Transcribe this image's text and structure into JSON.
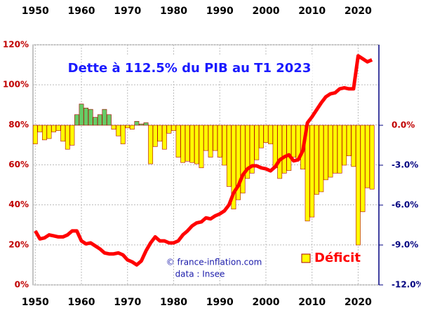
{
  "chart_data": {
    "type": "bar_line_dual",
    "title": "Dette à 112.5% du PIB au T1 2023",
    "annotations": [
      "© france-inflation.com",
      "data : Insee"
    ],
    "x": [
      1950,
      1951,
      1952,
      1953,
      1954,
      1955,
      1956,
      1957,
      1958,
      1959,
      1960,
      1961,
      1962,
      1963,
      1964,
      1965,
      1966,
      1967,
      1968,
      1969,
      1970,
      1971,
      1972,
      1973,
      1974,
      1975,
      1976,
      1977,
      1978,
      1979,
      1980,
      1981,
      1982,
      1983,
      1984,
      1985,
      1986,
      1987,
      1988,
      1989,
      1990,
      1991,
      1992,
      1993,
      1994,
      1995,
      1996,
      1997,
      1998,
      1999,
      2000,
      2001,
      2002,
      2003,
      2004,
      2005,
      2006,
      2007,
      2008,
      2009,
      2010,
      2011,
      2012,
      2013,
      2014,
      2015,
      2016,
      2017,
      2018,
      2019,
      2020,
      2021,
      2022,
      2023
    ],
    "series": [
      {
        "color": "#ff0000",
        "axis": "y",
        "values": [
          27,
          23,
          23.5,
          25,
          24.5,
          24,
          24,
          25,
          27,
          27,
          22,
          20.5,
          21,
          19.5,
          18,
          16,
          15.5,
          15.5,
          16,
          15,
          12.5,
          11.5,
          10,
          12,
          17,
          21,
          24,
          22,
          22,
          21,
          21,
          22,
          25,
          27,
          29.5,
          31,
          31.5,
          33.5,
          33,
          34.5,
          35.5,
          37,
          40,
          46,
          49.5,
          55,
          58,
          59.5,
          59.5,
          58.5,
          58,
          57,
          59,
          62.5,
          64,
          65,
          62,
          62.5,
          67,
          81,
          84,
          87.5,
          91,
          94,
          95.5,
          96,
          98,
          98.5,
          98,
          98,
          114.5,
          113,
          111.5,
          112.5
        ]
      },
      {
        "name": "Déficit",
        "color": "#ffff00",
        "positive_color": "#66cc66",
        "axis": "y2",
        "values": [
          -1.4,
          -0.5,
          -1.1,
          -1.0,
          -0.5,
          -0.4,
          -1.2,
          -1.8,
          -1.5,
          0.8,
          1.6,
          1.3,
          1.2,
          0.6,
          0.8,
          1.2,
          0.8,
          -0.3,
          -0.8,
          -1.4,
          -0.2,
          -0.3,
          0.3,
          0.1,
          0.2,
          -2.9,
          -1.6,
          -1.2,
          -1.8,
          -0.6,
          -0.4,
          -2.4,
          -2.8,
          -2.7,
          -2.8,
          -2.9,
          -3.2,
          -1.9,
          -2.4,
          -1.9,
          -2.4,
          -3.0,
          -4.6,
          -6.3,
          -5.6,
          -5.1,
          -4.0,
          -3.6,
          -2.6,
          -1.7,
          -1.3,
          -1.4,
          -3.2,
          -4.0,
          -3.6,
          -3.4,
          -2.4,
          -2.6,
          -3.3,
          -7.2,
          -6.9,
          -5.2,
          -5.0,
          -4.1,
          -3.9,
          -3.6,
          -3.6,
          -3.0,
          -2.3,
          -3.1,
          -9.0,
          -6.5,
          -4.7,
          -4.8
        ]
      }
    ],
    "xlim": [
      1949.5,
      2024.5
    ],
    "xticks": [
      1950,
      1960,
      1970,
      1980,
      1990,
      2000,
      2010,
      2020
    ],
    "ylim": [
      0,
      120
    ],
    "yticks": [
      {
        "value": 0,
        "label": "0%"
      },
      {
        "value": 20,
        "label": "20%"
      },
      {
        "value": 40,
        "label": "40%"
      },
      {
        "value": 60,
        "label": "60%"
      },
      {
        "value": 80,
        "label": "80%"
      },
      {
        "value": 100,
        "label": "100%"
      },
      {
        "value": 120,
        "label": "120%"
      }
    ],
    "y2lim": [
      -12,
      6.05
    ],
    "y2ticks": [
      {
        "value": 0,
        "label": "0.0%"
      },
      {
        "value": -3,
        "label": "-3.0%"
      },
      {
        "value": -6,
        "label": "-6.0%"
      },
      {
        "value": -9,
        "label": "-9.0%"
      },
      {
        "value": -12,
        "label": "-12.0%"
      }
    ],
    "grid": true
  }
}
